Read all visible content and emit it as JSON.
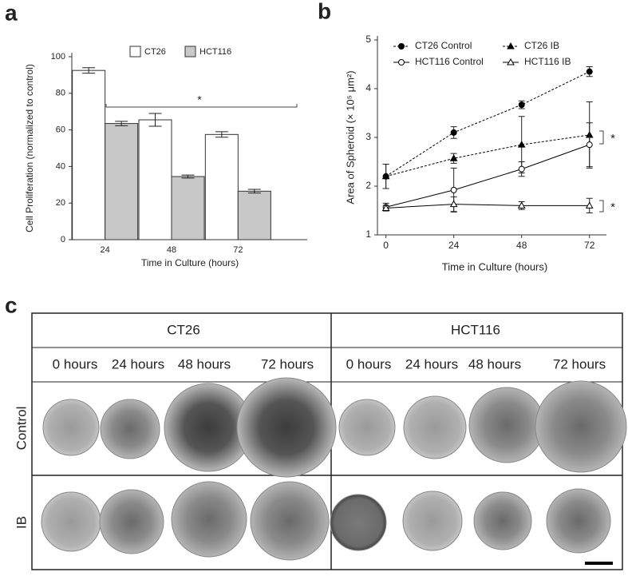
{
  "chart_data": [
    {
      "type": "bar",
      "panel": "a",
      "ylabel": "Cell Proliferation (normalized to control)",
      "xlabel": "Time in Culture (hours)",
      "categories": [
        "24",
        "48",
        "72"
      ],
      "series": [
        {
          "name": "CT26",
          "color": "#ffffff",
          "values": [
            92.5,
            65.5,
            57.5
          ],
          "errors": [
            1.5,
            3.5,
            1.5
          ]
        },
        {
          "name": "HCT116",
          "color": "#c8c8c8",
          "values": [
            63.5,
            34.5,
            26.5
          ],
          "errors": [
            1.2,
            0.8,
            1
          ]
        }
      ],
      "ylim": [
        0,
        100
      ],
      "yticks": [
        0,
        20,
        40,
        60,
        80,
        100
      ],
      "annotations": [
        "*"
      ]
    },
    {
      "type": "line",
      "panel": "b",
      "ylabel": "Area of Spheroid (× 10⁵ μm²)",
      "xlabel": "Time in Culture (hours)",
      "x": [
        0,
        24,
        48,
        72
      ],
      "xlim": [
        -3,
        78
      ],
      "xticks": [
        0,
        24,
        48,
        72
      ],
      "ylim": [
        1,
        5
      ],
      "yticks": [
        1,
        2,
        3,
        4,
        5
      ],
      "series": [
        {
          "name": "CT26 Control",
          "color": "#000000",
          "marker": "circle",
          "filled": true,
          "dashed": true,
          "values": [
            2.2,
            3.1,
            3.67,
            4.35
          ],
          "errors": [
            0.25,
            0.12,
            0.08,
            0.1
          ]
        },
        {
          "name": "CT26 IB",
          "color": "#000000",
          "marker": "triangle",
          "filled": true,
          "dashed": true,
          "values": [
            2.2,
            2.57,
            2.85,
            3.05
          ],
          "errors": [
            0.25,
            0.1,
            0.58,
            0.68
          ]
        },
        {
          "name": "HCT116 Control",
          "color": "#000000",
          "marker": "circle",
          "filled": false,
          "dashed": false,
          "values": [
            1.57,
            1.92,
            2.35,
            2.85
          ],
          "errors": [
            0.08,
            0.45,
            0.15,
            0.45
          ]
        },
        {
          "name": "HCT116 IB",
          "color": "#000000",
          "marker": "triangle",
          "filled": false,
          "dashed": false,
          "values": [
            1.55,
            1.63,
            1.6,
            1.6
          ],
          "errors": [
            0.05,
            0.15,
            0.08,
            0.15
          ]
        }
      ],
      "annotations": [
        "*",
        "*"
      ]
    }
  ],
  "panel_c": {
    "panel": "c",
    "groups": [
      "CT26",
      "HCT116"
    ],
    "times": [
      "0 hours",
      "24 hours",
      "48 hours",
      "72 hours"
    ],
    "rows": [
      "Control",
      "IB"
    ]
  }
}
